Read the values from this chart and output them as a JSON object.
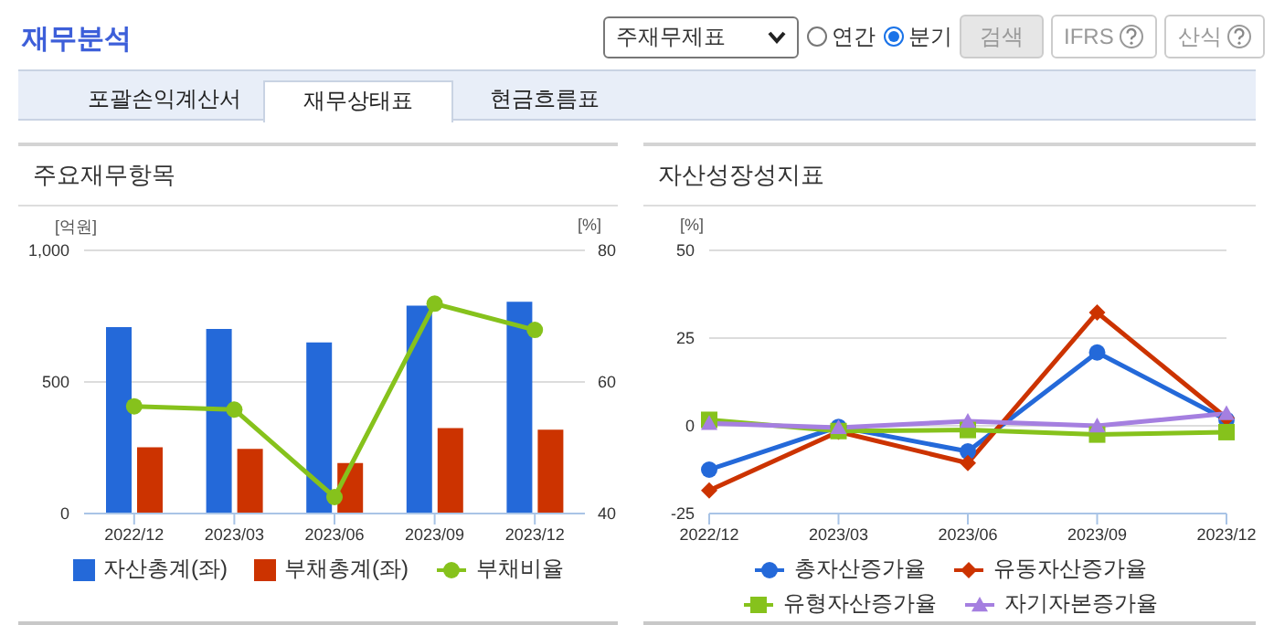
{
  "chart_data": [
    {
      "type": "other",
      "title": "재무분석",
      "annotations": [
        "주재무제표",
        "연간",
        "분기",
        "검색",
        "IFRS",
        "산식",
        "포괄손익계산서",
        "재무상태표",
        "현금흐름표"
      ]
    },
    {
      "type": "bar",
      "title": "주요재무항목",
      "ylabel": "[억원]",
      "y2label": "[%]",
      "categories": [
        "2022/12",
        "2023/03",
        "2023/06",
        "2023/09",
        "2023/12"
      ],
      "series": [
        {
          "name": "자산총계(좌)",
          "color": "#2469d9",
          "values": [
            708,
            701,
            650,
            790,
            805
          ]
        },
        {
          "name": "부채총계(좌)",
          "color": "#cc3300",
          "values": [
            252,
            246,
            192,
            325,
            319
          ]
        },
        {
          "name": "부채비율",
          "type": "line",
          "axis": "y2",
          "marker": "circle",
          "color": "#86c21c",
          "values": [
            56.3,
            55.8,
            42.5,
            71.9,
            67.9
          ]
        }
      ],
      "ylim": [
        0,
        1000
      ],
      "yticks": [
        0,
        500,
        {
          "value": 1000,
          "label": "1,000"
        }
      ],
      "y2lim": [
        40,
        80
      ],
      "y2ticks": [
        40,
        60,
        80
      ],
      "grid": "y",
      "legend": "bottom"
    },
    {
      "type": "line",
      "title": "자산성장성지표",
      "ylabel": "[%]",
      "categories": [
        "2022/12",
        "2023/03",
        "2023/06",
        "2023/09",
        "2023/12"
      ],
      "series": [
        {
          "name": "총자산증가율",
          "color": "#2469d9",
          "marker": "circle",
          "values": [
            -12.5,
            -0.3,
            -7.3,
            20.9,
            1.7
          ]
        },
        {
          "name": "유동자산증가율",
          "color": "#cc3300",
          "marker": "diamond",
          "values": [
            -18.4,
            -1.7,
            -10.6,
            32.3,
            2.2
          ]
        },
        {
          "name": "유형자산증가율",
          "color": "#86c21c",
          "marker": "square",
          "values": [
            1.7,
            -1.5,
            -1.2,
            -2.5,
            -1.8
          ]
        },
        {
          "name": "자기자본증가율",
          "color": "#a57fe0",
          "marker": "triangle",
          "values": [
            0.7,
            -0.5,
            1.3,
            0,
            3.5
          ]
        }
      ],
      "ylim": [
        -25,
        50
      ],
      "yticks": [
        -25,
        0,
        25,
        50
      ],
      "grid": "y",
      "legend": "bottom"
    }
  ]
}
